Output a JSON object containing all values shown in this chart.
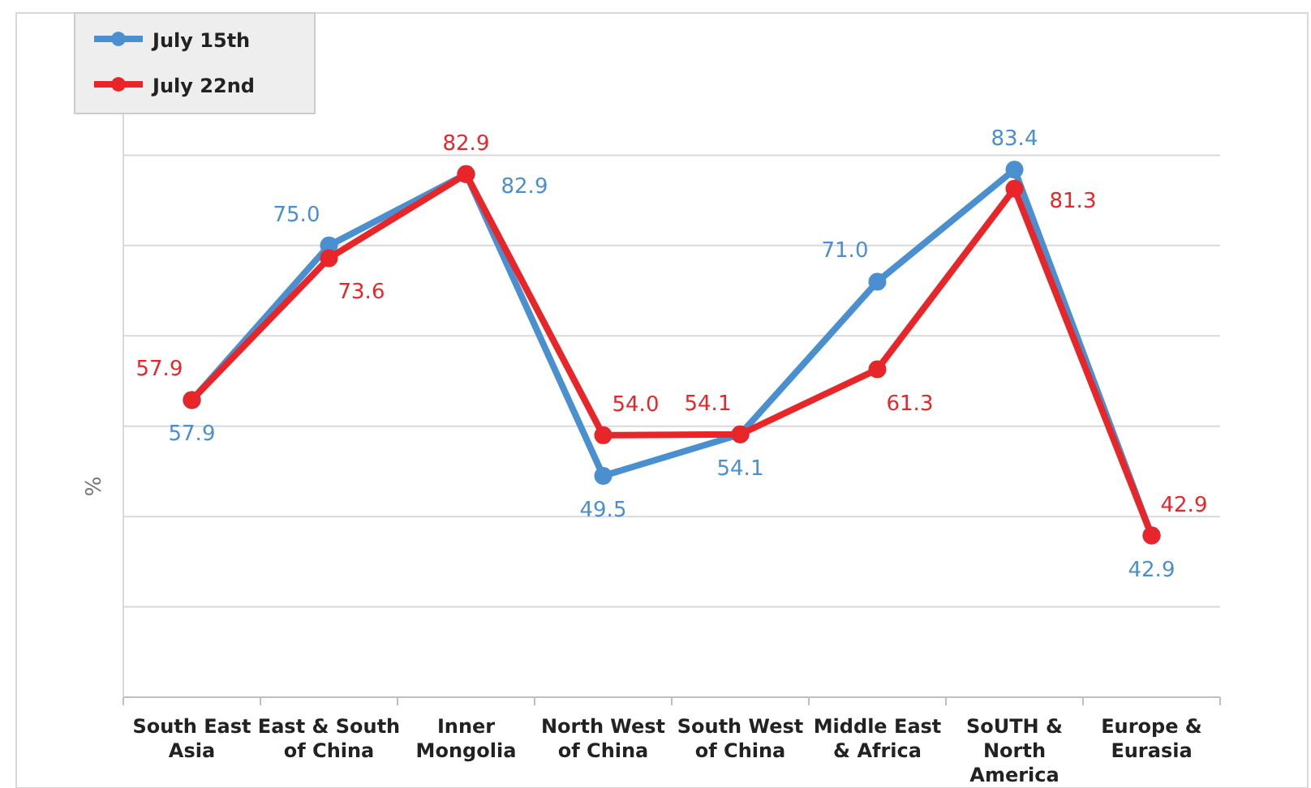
{
  "chart_data": {
    "type": "line",
    "ylabel": "%",
    "categories": [
      "South East Asia",
      "East & South of China",
      "Inner Mongolia",
      "North West of China",
      "South West of China",
      "Middle East & Africa",
      "SoUTH & North America",
      "Europe & Eurasia"
    ],
    "series": [
      {
        "name": "July 15th",
        "color": "#4a8fd0",
        "values": [
          57.9,
          75.0,
          82.9,
          49.5,
          54.1,
          71.0,
          83.4,
          42.9
        ],
        "value_labels": [
          "57.9",
          "75.0",
          "82.9",
          "49.5",
          "54.1",
          "71.0",
          "83.4",
          "42.9"
        ]
      },
      {
        "name": "July 22nd",
        "color": "#e8262a",
        "values": [
          57.9,
          73.6,
          82.9,
          54.0,
          54.1,
          61.3,
          81.3,
          42.9
        ],
        "value_labels": [
          "57.9",
          "73.6",
          "82.9",
          "54.0",
          "54.1",
          "61.3",
          "81.3",
          "42.9"
        ]
      }
    ],
    "ylim": [
      25,
      95
    ],
    "yticks": [
      {
        "value": 25,
        "label": null
      },
      {
        "value": 35,
        "label": null
      },
      {
        "value": 45,
        "label": null
      },
      {
        "value": 55,
        "label": null
      },
      {
        "value": 65,
        "label": null
      },
      {
        "value": 75,
        "label": null
      },
      {
        "value": 85,
        "label": null
      }
    ],
    "tick_labels": "x",
    "grid": "y",
    "legend": "top left",
    "marker": "circle",
    "line_style": "solid"
  }
}
